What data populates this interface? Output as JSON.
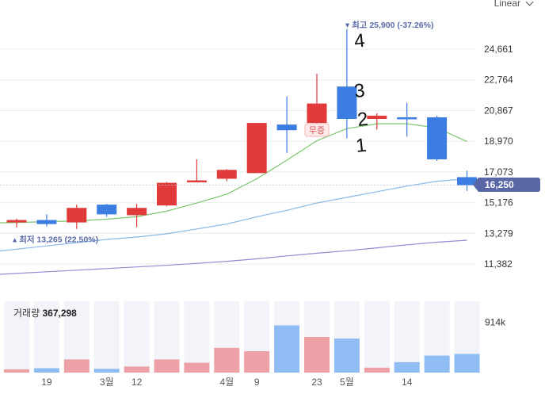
{
  "chart_data": {
    "type": "candlestick",
    "price_axis_ticks": [
      "24,661",
      "22,764",
      "20,867",
      "18,970",
      "17,073",
      "15,176",
      "13,279",
      "11,382"
    ],
    "price_axis_tick_values": [
      24661,
      22764,
      20867,
      18970,
      17073,
      15176,
      13279,
      11382
    ],
    "ylim": [
      10500,
      26500
    ],
    "x_ticks": [
      {
        "index": 1,
        "label": "19"
      },
      {
        "index": 3,
        "label": "3월"
      },
      {
        "index": 4,
        "label": "12"
      },
      {
        "index": 7,
        "label": "4월"
      },
      {
        "index": 8,
        "label": "9"
      },
      {
        "index": 10,
        "label": "23"
      },
      {
        "index": 11,
        "label": "5월"
      },
      {
        "index": 13,
        "label": "14"
      }
    ],
    "candles": [
      {
        "open": 13950,
        "high": 14180,
        "low": 13650,
        "close": 14100
      },
      {
        "open": 14100,
        "high": 14450,
        "low": 13700,
        "close": 13850
      },
      {
        "open": 13950,
        "high": 15050,
        "low": 13550,
        "close": 14850
      },
      {
        "open": 15050,
        "high": 15100,
        "low": 14300,
        "close": 14450
      },
      {
        "open": 14400,
        "high": 15100,
        "low": 13650,
        "close": 14850
      },
      {
        "open": 15000,
        "high": 16450,
        "low": 14950,
        "close": 16400
      },
      {
        "open": 16450,
        "high": 17850,
        "low": 16450,
        "close": 16550
      },
      {
        "open": 16650,
        "high": 17250,
        "low": 16500,
        "close": 17200
      },
      {
        "open": 17000,
        "high": 20100,
        "low": 17000,
        "close": 20100
      },
      {
        "open": 20000,
        "high": 21750,
        "low": 18250,
        "close": 19650
      },
      {
        "open": 20100,
        "high": 23150,
        "low": 19650,
        "close": 21300
      },
      {
        "open": 22350,
        "high": 25900,
        "low": 19150,
        "close": 20350
      },
      {
        "open": 20350,
        "high": 20700,
        "low": 19700,
        "close": 20550
      },
      {
        "open": 20450,
        "high": 21350,
        "low": 19250,
        "close": 20350
      },
      {
        "open": 20450,
        "high": 20550,
        "low": 17750,
        "close": 17850
      },
      {
        "open": 16750,
        "high": 17150,
        "low": 15900,
        "close": 16250
      }
    ],
    "moving_averages": [
      {
        "color": "#79c66b",
        "values": [
          13950,
          14000,
          14050,
          14150,
          14300,
          14650,
          15150,
          15700,
          16650,
          17800,
          19000,
          19750,
          20050,
          20050,
          19800,
          18950
        ]
      },
      {
        "color": "#8ab8e6",
        "values": [
          12300,
          12500,
          12700,
          12900,
          13050,
          13250,
          13550,
          13850,
          14300,
          14700,
          15150,
          15500,
          15850,
          16200,
          16500,
          16650
        ]
      },
      {
        "color": "#9a88d0",
        "values": [
          10800,
          10900,
          11000,
          11100,
          11200,
          11300,
          11420,
          11550,
          11700,
          11880,
          12050,
          12200,
          12380,
          12570,
          12730,
          12850
        ]
      }
    ],
    "volume": {
      "title": "거래량",
      "value": "367,298",
      "axis_label": "914k",
      "axis_value": 914000,
      "max": 1300000,
      "values": [
        60000,
        80000,
        240000,
        70000,
        110000,
        240000,
        180000,
        450000,
        390000,
        860000,
        650000,
        620000,
        90000,
        190000,
        310000,
        340000
      ]
    },
    "annotations": {
      "high_label": "최고 25,900 (-37.26%)",
      "low_label": "최저 13,265 (22.50%)",
      "low_value": 13265,
      "badge_text": "무증",
      "current_price": "16,250"
    },
    "handwritten_marks": [
      "1",
      "2",
      "3",
      "4"
    ]
  },
  "ui": {
    "scale_toggle_label": "Linear"
  },
  "colors": {
    "up": "#e03a3a",
    "down": "#3b7de0",
    "vol_up": "#eda0a6",
    "vol_down": "#8fbcf3",
    "vol_bg": "#f3f4f9",
    "price_tag_bg": "#5a67a6",
    "grid": "#ececec"
  }
}
